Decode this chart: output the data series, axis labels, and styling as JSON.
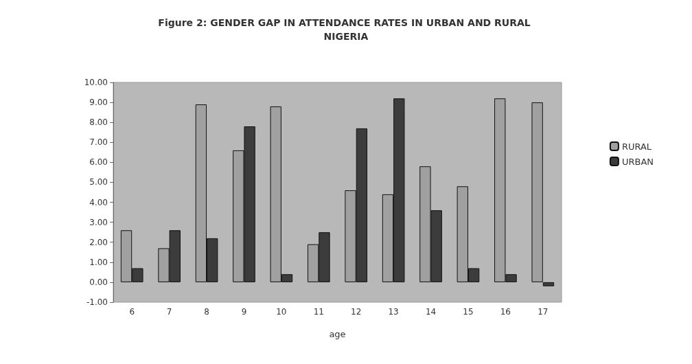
{
  "chart_data": {
    "type": "bar",
    "title": "Figure 2: GENDER GAP IN ATTENDANCE RATES IN URBAN AND RURAL NIGERIA",
    "xlabel": "age",
    "categories": [
      "6",
      "7",
      "8",
      "9",
      "10",
      "11",
      "12",
      "13",
      "14",
      "15",
      "16",
      "17"
    ],
    "series": [
      {
        "name": "RURAL",
        "color": "#a0a0a0",
        "values": [
          2.6,
          1.7,
          8.9,
          6.6,
          8.8,
          1.9,
          4.6,
          4.4,
          5.8,
          4.8,
          9.2,
          9.0
        ]
      },
      {
        "name": "URBAN",
        "color": "#3c3c3c",
        "values": [
          0.7,
          2.6,
          2.2,
          7.8,
          0.4,
          2.5,
          7.7,
          9.2,
          3.6,
          0.7,
          0.4,
          -0.2
        ]
      }
    ],
    "ylim": [
      -1,
      10
    ],
    "yticks": [
      {
        "value": -1,
        "label": "-1.00"
      },
      {
        "value": 0,
        "label": "0.00"
      },
      {
        "value": 1,
        "label": "1.00"
      },
      {
        "value": 2,
        "label": "2.00"
      },
      {
        "value": 3,
        "label": "3.00"
      },
      {
        "value": 4,
        "label": "4.00"
      },
      {
        "value": 5,
        "label": "5.00"
      },
      {
        "value": 6,
        "label": "6.00"
      },
      {
        "value": 7,
        "label": "7.00"
      },
      {
        "value": 8,
        "label": "8.00"
      },
      {
        "value": 9,
        "label": "9.00"
      },
      {
        "value": 10,
        "label": "10.00"
      }
    ],
    "grid": false,
    "legend": "right"
  }
}
